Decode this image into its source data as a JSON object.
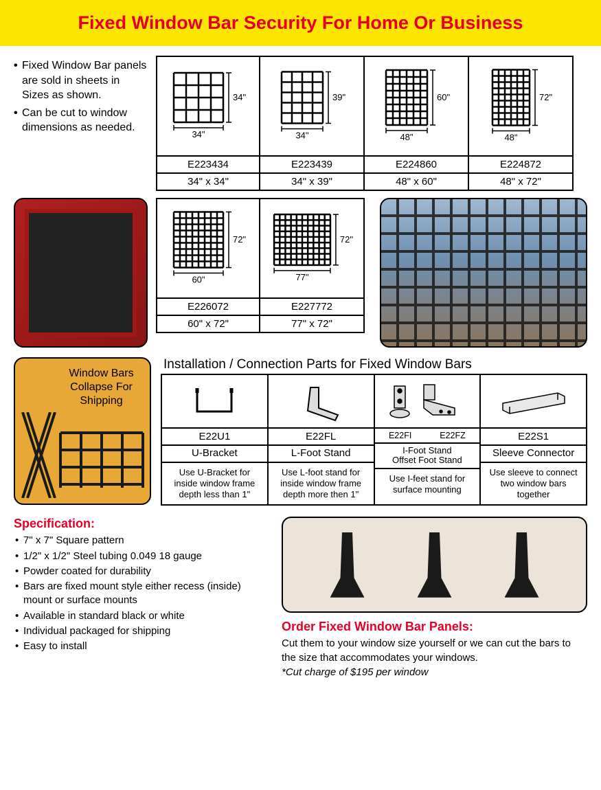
{
  "header": {
    "title": "Fixed Window Bar Security For Home Or Business"
  },
  "intro": {
    "items": [
      "Fixed Window Bar panels are sold in sheets in Sizes as shown.",
      "Can be cut to window dimensions as needed."
    ]
  },
  "products_top": [
    {
      "sku": "E223434",
      "size": "34\" x 34\"",
      "w": "34\"",
      "h": "34\"",
      "cols": 5,
      "rows": 5
    },
    {
      "sku": "E223439",
      "size": "34\" x 39\"",
      "w": "34\"",
      "h": "39\"",
      "cols": 5,
      "rows": 6
    },
    {
      "sku": "E224860",
      "size": "48\" x 60\"",
      "w": "48\"",
      "h": "60\"",
      "cols": 7,
      "rows": 9
    },
    {
      "sku": "E224872",
      "size": "48\" x 72\"",
      "w": "48\"",
      "h": "72\"",
      "cols": 7,
      "rows": 10
    }
  ],
  "products_bottom": [
    {
      "sku": "E226072",
      "size": "60\" x 72\"",
      "w": "60\"",
      "h": "72\"",
      "cols": 9,
      "rows": 10
    },
    {
      "sku": "E227772",
      "size": "77\" x 72\"",
      "w": "77\"",
      "h": "72\"",
      "cols": 11,
      "rows": 10
    }
  ],
  "collapse": {
    "line1": "Window Bars",
    "line2": "Collapse For",
    "line3": "Shipping"
  },
  "parts": {
    "title": "Installation / Connection Parts for Fixed Window Bars",
    "items": [
      {
        "sku": "E22U1",
        "name": "U-Bracket",
        "desc": "Use U-Bracket for inside window frame depth less than 1\""
      },
      {
        "sku": "E22FL",
        "name": "L-Foot Stand",
        "desc": "Use L-foot stand for inside window frame depth more then 1\""
      },
      {
        "sku": "E22FI",
        "sku2": "E22FZ",
        "name": "I-Foot Stand",
        "name2": "Offset Foot Stand",
        "desc": "Use I-feet stand for surface mounting"
      },
      {
        "sku": "E22S1",
        "name": "Sleeve Connector",
        "desc": "Use sleeve to connect two window bars together"
      }
    ]
  },
  "spec": {
    "title": "Specification:",
    "items": [
      "7\" x 7\" Square pattern",
      "1/2\" x 1/2\" Steel tubing 0.049  18 gauge",
      "Powder coated for durability",
      "Bars are fixed mount style either recess (inside) mount or surface mounts",
      "Available in standard black or white",
      "Individual packaged for shipping",
      "Easy to install"
    ]
  },
  "order": {
    "title": "Order Fixed Window Bar Panels:",
    "text": "Cut them to your window size yourself or we can cut the bars to the size that accommodates your windows.",
    "note": "*Cut charge of $195 per window"
  },
  "colors": {
    "accent": "#e4002b",
    "header_bg": "#fce600"
  }
}
